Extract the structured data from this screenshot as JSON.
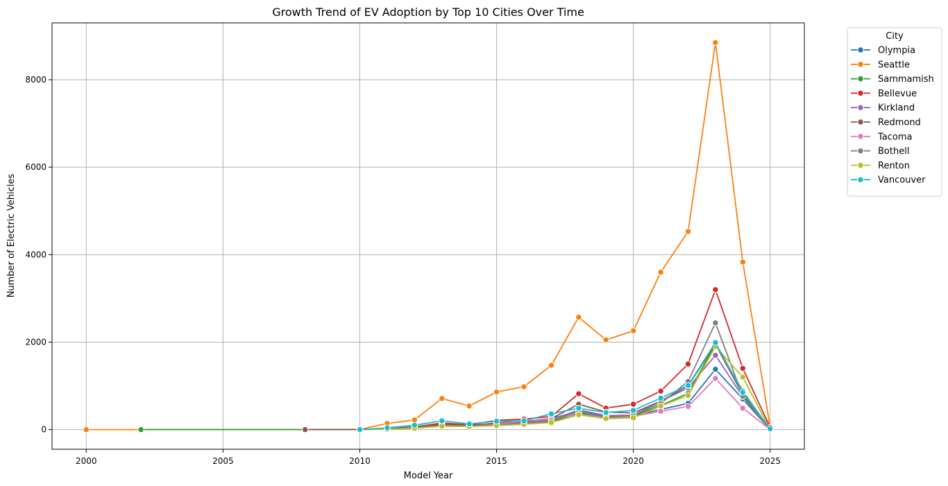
{
  "chart_data": {
    "type": "line",
    "title": "Growth Trend of EV Adoption by Top 10 Cities Over Time",
    "xlabel": "Model Year",
    "ylabel": "Number of Electric Vehicles",
    "xlim": [
      1998.75,
      2026.25
    ],
    "ylim": [
      -450,
      9300
    ],
    "xticks": [
      2000,
      2005,
      2010,
      2015,
      2020,
      2025
    ],
    "yticks": [
      0,
      2000,
      4000,
      6000,
      8000
    ],
    "grid": true,
    "legend": {
      "title": "City",
      "placement": "outside-right-top"
    },
    "series": [
      {
        "name": "Olympia",
        "color": "#1f77b4",
        "points": [
          [
            2010,
            0
          ],
          [
            2011,
            20
          ],
          [
            2012,
            50
          ],
          [
            2013,
            100
          ],
          [
            2014,
            90
          ],
          [
            2015,
            140
          ],
          [
            2016,
            160
          ],
          [
            2017,
            250
          ],
          [
            2018,
            420
          ],
          [
            2019,
            300
          ],
          [
            2020,
            320
          ],
          [
            2021,
            460
          ],
          [
            2022,
            600
          ],
          [
            2023,
            1380
          ],
          [
            2024,
            700
          ],
          [
            2025,
            0
          ]
        ]
      },
      {
        "name": "Seattle",
        "color": "#ff7f0e",
        "points": [
          [
            2000,
            0
          ],
          [
            2010,
            2
          ],
          [
            2011,
            140
          ],
          [
            2012,
            220
          ],
          [
            2013,
            710
          ],
          [
            2014,
            540
          ],
          [
            2015,
            860
          ],
          [
            2016,
            980
          ],
          [
            2017,
            1470
          ],
          [
            2018,
            2570
          ],
          [
            2019,
            2050
          ],
          [
            2020,
            2260
          ],
          [
            2021,
            3600
          ],
          [
            2022,
            4530
          ],
          [
            2023,
            8850
          ],
          [
            2024,
            3830
          ],
          [
            2025,
            60
          ]
        ]
      },
      {
        "name": "Sammamish",
        "color": "#2ca02c",
        "points": [
          [
            2002,
            0
          ],
          [
            2008,
            0
          ],
          [
            2010,
            2
          ],
          [
            2011,
            15
          ],
          [
            2012,
            40
          ],
          [
            2013,
            90
          ],
          [
            2014,
            80
          ],
          [
            2015,
            110
          ],
          [
            2016,
            130
          ],
          [
            2017,
            180
          ],
          [
            2018,
            380
          ],
          [
            2019,
            290
          ],
          [
            2020,
            310
          ],
          [
            2021,
            550
          ],
          [
            2022,
            830
          ],
          [
            2023,
            1950
          ],
          [
            2024,
            880
          ],
          [
            2025,
            0
          ]
        ]
      },
      {
        "name": "Bellevue",
        "color": "#d62728",
        "points": [
          [
            2010,
            0
          ],
          [
            2011,
            25
          ],
          [
            2012,
            60
          ],
          [
            2013,
            150
          ],
          [
            2014,
            110
          ],
          [
            2015,
            210
          ],
          [
            2016,
            240
          ],
          [
            2017,
            300
          ],
          [
            2018,
            820
          ],
          [
            2019,
            490
          ],
          [
            2020,
            580
          ],
          [
            2021,
            880
          ],
          [
            2022,
            1500
          ],
          [
            2023,
            3200
          ],
          [
            2024,
            1400
          ],
          [
            2025,
            50
          ]
        ]
      },
      {
        "name": "Kirkland",
        "color": "#9467bd",
        "points": [
          [
            2010,
            0
          ],
          [
            2011,
            20
          ],
          [
            2012,
            50
          ],
          [
            2013,
            110
          ],
          [
            2014,
            100
          ],
          [
            2015,
            130
          ],
          [
            2016,
            170
          ],
          [
            2017,
            220
          ],
          [
            2018,
            450
          ],
          [
            2019,
            320
          ],
          [
            2020,
            330
          ],
          [
            2021,
            650
          ],
          [
            2022,
            950
          ],
          [
            2023,
            1700
          ],
          [
            2024,
            750
          ],
          [
            2025,
            0
          ]
        ]
      },
      {
        "name": "Redmond",
        "color": "#8c564b",
        "points": [
          [
            2008,
            0
          ],
          [
            2010,
            2
          ],
          [
            2011,
            20
          ],
          [
            2012,
            60
          ],
          [
            2013,
            120
          ],
          [
            2014,
            90
          ],
          [
            2015,
            150
          ],
          [
            2016,
            190
          ],
          [
            2017,
            250
          ],
          [
            2018,
            580
          ],
          [
            2019,
            400
          ],
          [
            2020,
            380
          ],
          [
            2021,
            650
          ],
          [
            2022,
            1000
          ],
          [
            2023,
            1950
          ],
          [
            2024,
            800
          ],
          [
            2025,
            0
          ]
        ]
      },
      {
        "name": "Tacoma",
        "color": "#e377c2",
        "points": [
          [
            2010,
            0
          ],
          [
            2011,
            10
          ],
          [
            2012,
            30
          ],
          [
            2013,
            80
          ],
          [
            2014,
            70
          ],
          [
            2015,
            120
          ],
          [
            2016,
            200
          ],
          [
            2017,
            240
          ],
          [
            2018,
            350
          ],
          [
            2019,
            270
          ],
          [
            2020,
            300
          ],
          [
            2021,
            420
          ],
          [
            2022,
            530
          ],
          [
            2023,
            1170
          ],
          [
            2024,
            490
          ],
          [
            2025,
            0
          ]
        ]
      },
      {
        "name": "Bothell",
        "color": "#7f7f7f",
        "points": [
          [
            2010,
            0
          ],
          [
            2011,
            15
          ],
          [
            2012,
            40
          ],
          [
            2013,
            90
          ],
          [
            2014,
            80
          ],
          [
            2015,
            100
          ],
          [
            2016,
            140
          ],
          [
            2017,
            200
          ],
          [
            2018,
            420
          ],
          [
            2019,
            280
          ],
          [
            2020,
            320
          ],
          [
            2021,
            600
          ],
          [
            2022,
            1100
          ],
          [
            2023,
            2440
          ],
          [
            2024,
            760
          ],
          [
            2025,
            0
          ]
        ]
      },
      {
        "name": "Renton",
        "color": "#bcbd22",
        "points": [
          [
            2010,
            0
          ],
          [
            2011,
            10
          ],
          [
            2012,
            30
          ],
          [
            2013,
            80
          ],
          [
            2014,
            70
          ],
          [
            2015,
            90
          ],
          [
            2016,
            120
          ],
          [
            2017,
            160
          ],
          [
            2018,
            340
          ],
          [
            2019,
            250
          ],
          [
            2020,
            270
          ],
          [
            2021,
            540
          ],
          [
            2022,
            780
          ],
          [
            2023,
            1900
          ],
          [
            2024,
            1200
          ],
          [
            2025,
            0
          ]
        ]
      },
      {
        "name": "Vancouver",
        "color": "#17becf",
        "points": [
          [
            2010,
            0
          ],
          [
            2011,
            40
          ],
          [
            2012,
            100
          ],
          [
            2013,
            200
          ],
          [
            2014,
            130
          ],
          [
            2015,
            190
          ],
          [
            2016,
            200
          ],
          [
            2017,
            360
          ],
          [
            2018,
            490
          ],
          [
            2019,
            390
          ],
          [
            2020,
            440
          ],
          [
            2021,
            720
          ],
          [
            2022,
            1010
          ],
          [
            2023,
            1990
          ],
          [
            2024,
            850
          ],
          [
            2025,
            20
          ]
        ]
      }
    ]
  }
}
